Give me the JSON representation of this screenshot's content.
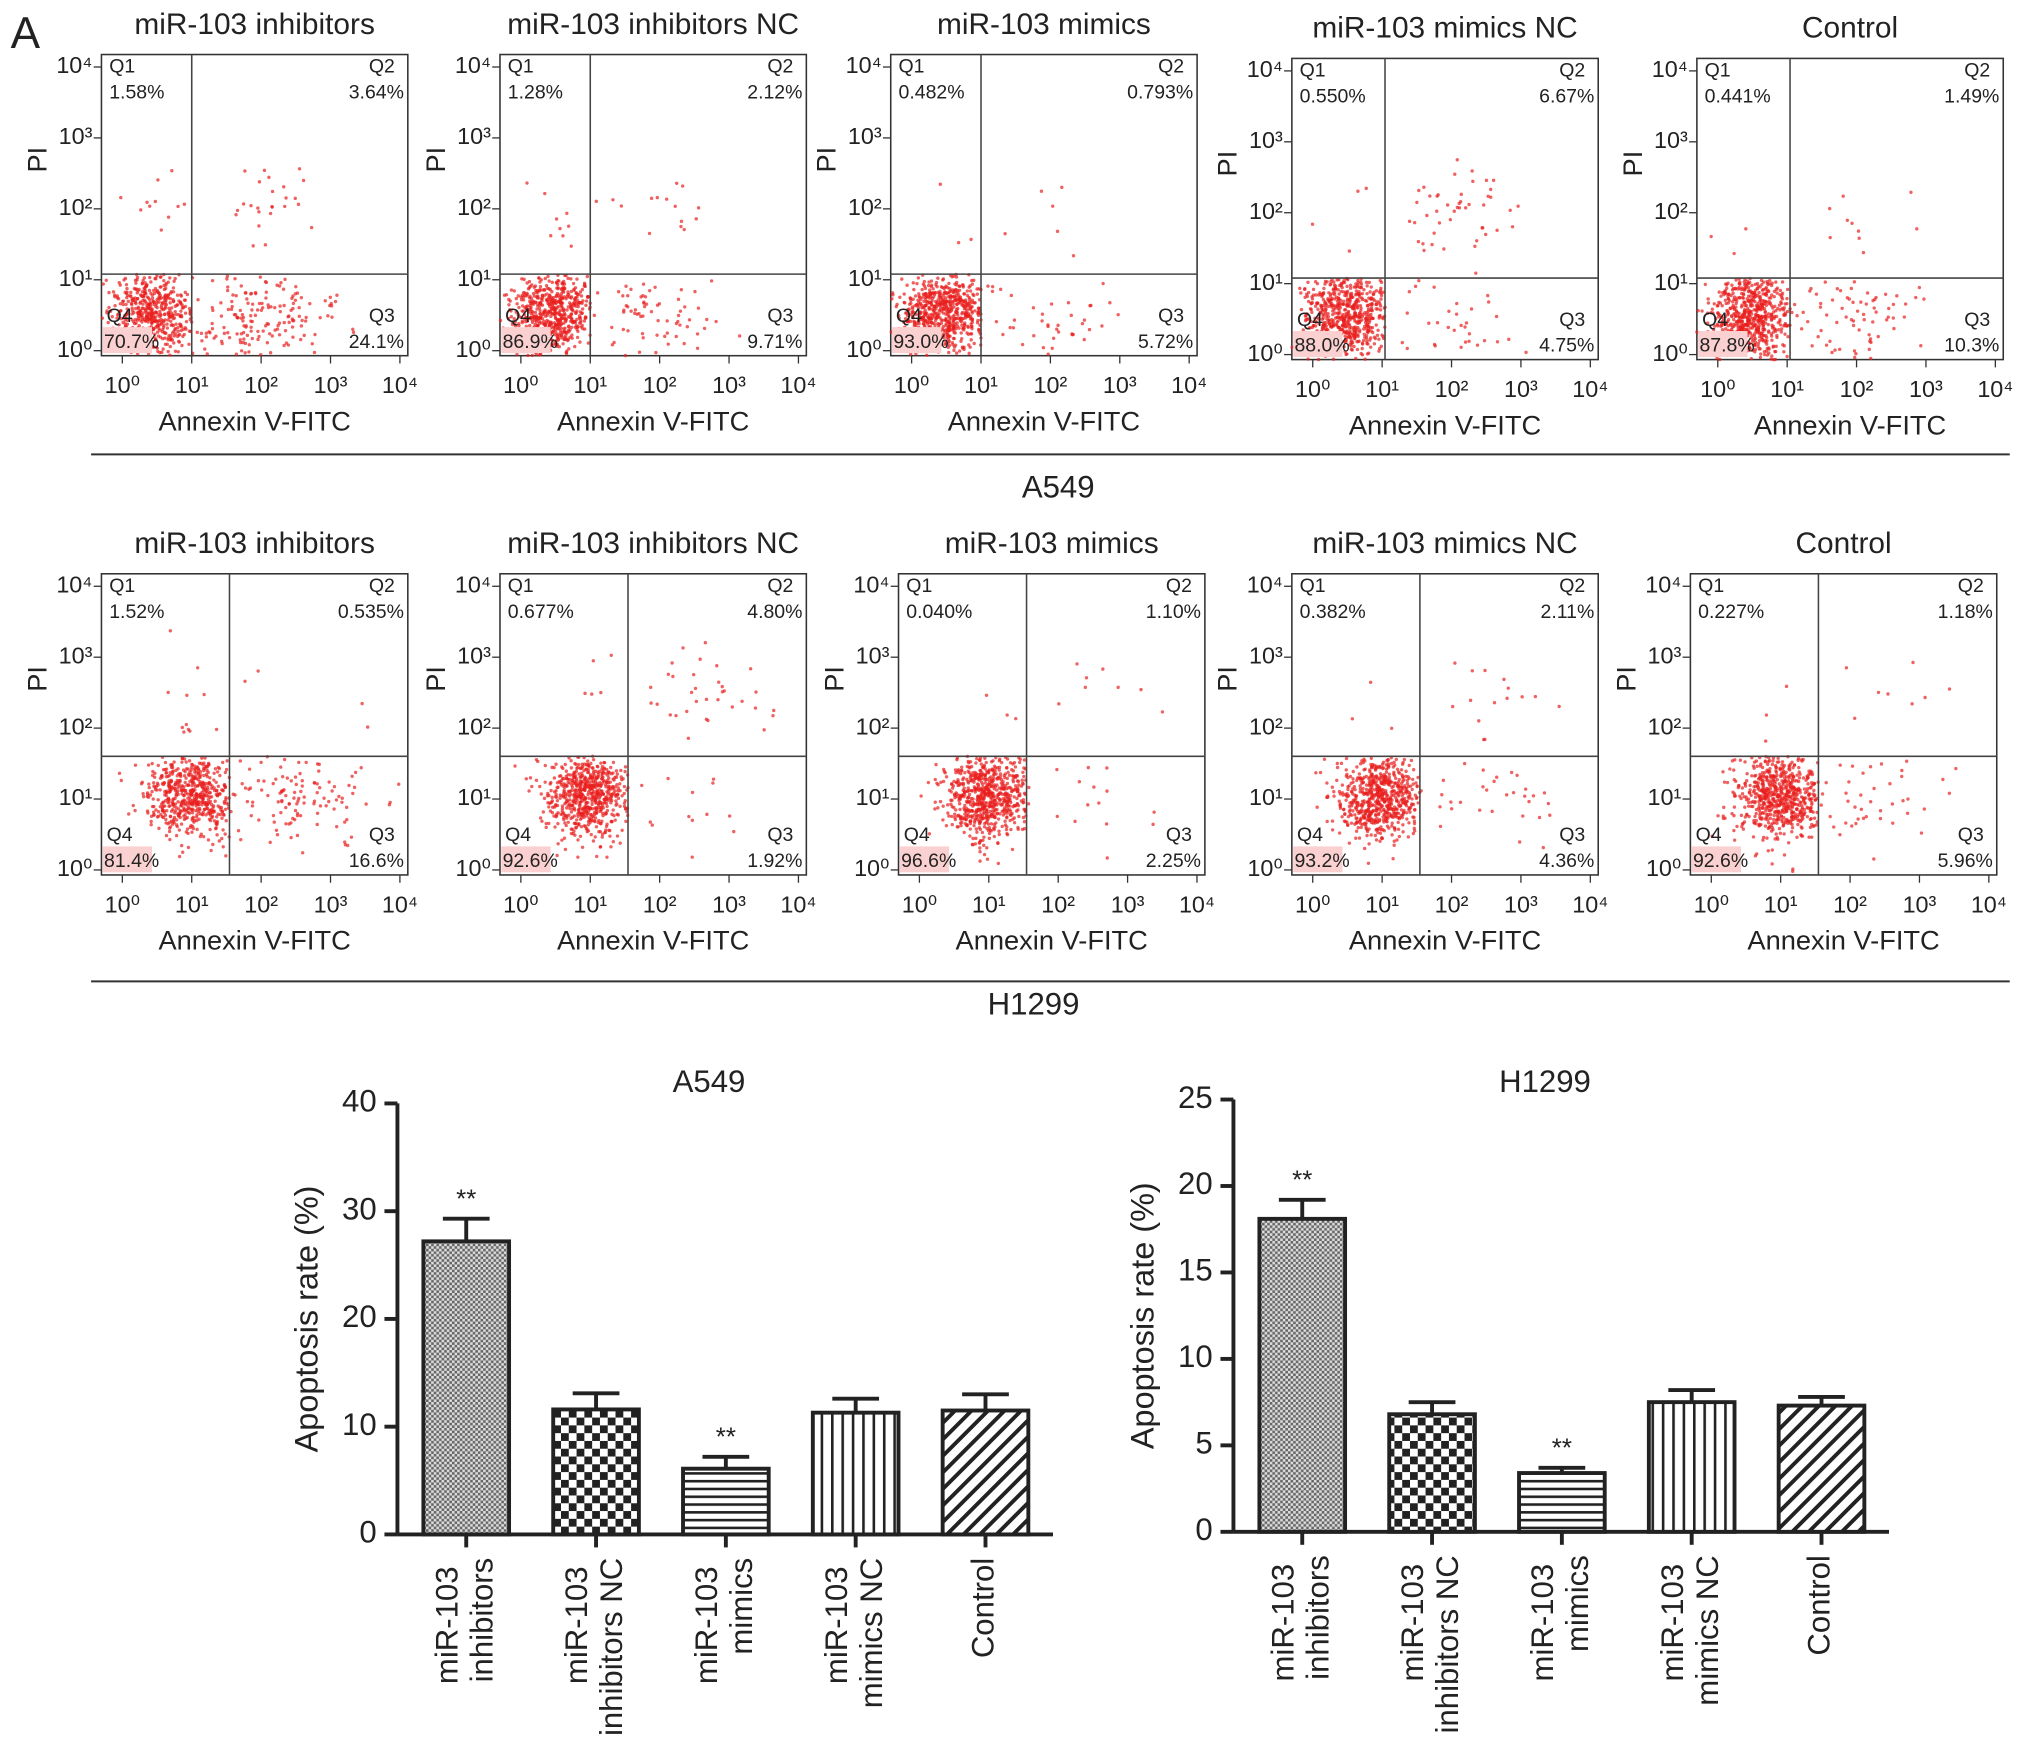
{
  "panel_label": "A",
  "sections": [
    "A549",
    "H1299"
  ],
  "chart_data": [
    {
      "type": "flow",
      "title": "miR-103 inhibitors",
      "xlabel": "Annexin V-FITC",
      "ylabel": "PI",
      "xscale": "log",
      "yscale": "log",
      "xlim": [
        0.5,
        13000
      ],
      "ylim": [
        0.85,
        15000
      ],
      "xticks": [
        {
          "value": 1,
          "label": "10⁰"
        },
        {
          "value": 10,
          "label": "10¹"
        },
        {
          "value": 100,
          "label": "10²"
        },
        {
          "value": 1000,
          "label": "10³"
        },
        {
          "value": 10000,
          "label": "10⁴"
        }
      ],
      "yticks": [
        {
          "value": 1,
          "label": "10⁰"
        },
        {
          "value": 10,
          "label": "10¹"
        },
        {
          "value": 100,
          "label": "10²"
        },
        {
          "value": 1000,
          "label": "10³"
        },
        {
          "value": 10000,
          "label": "10⁴"
        }
      ],
      "gate": {
        "x": 10,
        "y": 12
      },
      "color": "#e8201e",
      "quadrants": [
        "Q1",
        "Q2",
        "Q3",
        "Q4"
      ],
      "values": [
        1.58,
        3.64,
        24.1,
        70.7
      ],
      "value_labels": [
        "1.58%",
        "3.64%",
        "24.1%",
        "70.7%"
      ]
    },
    {
      "type": "flow",
      "title": "miR-103 inhibitors NC",
      "xlabel": "Annexin V-FITC",
      "ylabel": "PI",
      "xscale": "log",
      "yscale": "log",
      "xlim": [
        0.5,
        13000
      ],
      "ylim": [
        0.85,
        15000
      ],
      "xticks": [
        {
          "value": 1,
          "label": "10⁰"
        },
        {
          "value": 10,
          "label": "10¹"
        },
        {
          "value": 100,
          "label": "10²"
        },
        {
          "value": 1000,
          "label": "10³"
        },
        {
          "value": 10000,
          "label": "10⁴"
        }
      ],
      "yticks": [
        {
          "value": 1,
          "label": "10⁰"
        },
        {
          "value": 10,
          "label": "10¹"
        },
        {
          "value": 100,
          "label": "10²"
        },
        {
          "value": 1000,
          "label": "10³"
        },
        {
          "value": 10000,
          "label": "10⁴"
        }
      ],
      "gate": {
        "x": 10,
        "y": 12
      },
      "color": "#e8201e",
      "quadrants": [
        "Q1",
        "Q2",
        "Q3",
        "Q4"
      ],
      "values": [
        1.28,
        2.12,
        9.71,
        86.9
      ],
      "value_labels": [
        "1.28%",
        "2.12%",
        "9.71%",
        "86.9%"
      ]
    },
    {
      "type": "flow",
      "title": "miR-103 mimics",
      "xlabel": "Annexin V-FITC",
      "ylabel": "PI",
      "xscale": "log",
      "yscale": "log",
      "xlim": [
        0.5,
        13000
      ],
      "ylim": [
        0.85,
        15000
      ],
      "xticks": [
        {
          "value": 1,
          "label": "10⁰"
        },
        {
          "value": 10,
          "label": "10¹"
        },
        {
          "value": 100,
          "label": "10²"
        },
        {
          "value": 1000,
          "label": "10³"
        },
        {
          "value": 10000,
          "label": "10⁴"
        }
      ],
      "yticks": [
        {
          "value": 1,
          "label": "10⁰"
        },
        {
          "value": 10,
          "label": "10¹"
        },
        {
          "value": 100,
          "label": "10²"
        },
        {
          "value": 1000,
          "label": "10³"
        },
        {
          "value": 10000,
          "label": "10⁴"
        }
      ],
      "gate": {
        "x": 10,
        "y": 12
      },
      "color": "#e8201e",
      "quadrants": [
        "Q1",
        "Q2",
        "Q3",
        "Q4"
      ],
      "values": [
        0.482,
        0.793,
        5.72,
        93.0
      ],
      "value_labels": [
        "0.482%",
        "0.793%",
        "5.72%",
        "93.0%"
      ]
    },
    {
      "type": "flow",
      "title": "miR-103 mimics NC",
      "xlabel": "Annexin V-FITC",
      "ylabel": "PI",
      "xscale": "log",
      "yscale": "log",
      "xlim": [
        0.5,
        13000
      ],
      "ylim": [
        0.85,
        15000
      ],
      "xticks": [
        {
          "value": 1,
          "label": "10⁰"
        },
        {
          "value": 10,
          "label": "10¹"
        },
        {
          "value": 100,
          "label": "10²"
        },
        {
          "value": 1000,
          "label": "10³"
        },
        {
          "value": 10000,
          "label": "10⁴"
        }
      ],
      "yticks": [
        {
          "value": 1,
          "label": "10⁰"
        },
        {
          "value": 10,
          "label": "10¹"
        },
        {
          "value": 100,
          "label": "10²"
        },
        {
          "value": 1000,
          "label": "10³"
        },
        {
          "value": 10000,
          "label": "10⁴"
        }
      ],
      "gate": {
        "x": 11,
        "y": 12
      },
      "color": "#e8201e",
      "quadrants": [
        "Q1",
        "Q2",
        "Q3",
        "Q4"
      ],
      "values": [
        0.55,
        6.67,
        4.75,
        88.0
      ],
      "value_labels": [
        "0.550%",
        "6.67%",
        "4.75%",
        "88.0%"
      ]
    },
    {
      "type": "flow",
      "title": "Control",
      "xlabel": "Annexin V-FITC",
      "ylabel": "PI",
      "xscale": "log",
      "yscale": "log",
      "xlim": [
        0.5,
        13000
      ],
      "ylim": [
        0.85,
        15000
      ],
      "xticks": [
        {
          "value": 1,
          "label": "10⁰"
        },
        {
          "value": 10,
          "label": "10¹"
        },
        {
          "value": 100,
          "label": "10²"
        },
        {
          "value": 1000,
          "label": "10³"
        },
        {
          "value": 10000,
          "label": "10⁴"
        }
      ],
      "yticks": [
        {
          "value": 1,
          "label": "10⁰"
        },
        {
          "value": 10,
          "label": "10¹"
        },
        {
          "value": 100,
          "label": "10²"
        },
        {
          "value": 1000,
          "label": "10³"
        },
        {
          "value": 10000,
          "label": "10⁴"
        }
      ],
      "gate": {
        "x": 11,
        "y": 12
      },
      "color": "#e8201e",
      "quadrants": [
        "Q1",
        "Q2",
        "Q3",
        "Q4"
      ],
      "values": [
        0.441,
        1.49,
        10.3,
        87.8
      ],
      "value_labels": [
        "0.441%",
        "1.49%",
        "10.3%",
        "87.8%"
      ]
    },
    {
      "type": "flow",
      "title": "miR-103 inhibitors",
      "xlabel": "Annexin V-FITC",
      "ylabel": "PI",
      "xscale": "log",
      "yscale": "log",
      "xlim": [
        0.5,
        13000
      ],
      "ylim": [
        0.85,
        15000
      ],
      "xticks": [
        {
          "value": 1,
          "label": "10⁰"
        },
        {
          "value": 10,
          "label": "10¹"
        },
        {
          "value": 100,
          "label": "10²"
        },
        {
          "value": 1000,
          "label": "10³"
        },
        {
          "value": 10000,
          "label": "10⁴"
        }
      ],
      "yticks": [
        {
          "value": 1,
          "label": "10⁰"
        },
        {
          "value": 10,
          "label": "10¹"
        },
        {
          "value": 100,
          "label": "10²"
        },
        {
          "value": 1000,
          "label": "10³"
        },
        {
          "value": 10000,
          "label": "10⁴"
        }
      ],
      "gate": {
        "x": 35,
        "y": 40
      },
      "color": "#e8201e",
      "quadrants": [
        "Q1",
        "Q2",
        "Q3",
        "Q4"
      ],
      "values": [
        1.52,
        0.535,
        16.6,
        81.4
      ],
      "value_labels": [
        "1.52%",
        "0.535%",
        "16.6%",
        "81.4%"
      ]
    },
    {
      "type": "flow",
      "title": "miR-103 inhibitors NC",
      "xlabel": "Annexin V-FITC",
      "ylabel": "PI",
      "xscale": "log",
      "yscale": "log",
      "xlim": [
        0.5,
        13000
      ],
      "ylim": [
        0.85,
        15000
      ],
      "xticks": [
        {
          "value": 1,
          "label": "10⁰"
        },
        {
          "value": 10,
          "label": "10¹"
        },
        {
          "value": 100,
          "label": "10²"
        },
        {
          "value": 1000,
          "label": "10³"
        },
        {
          "value": 10000,
          "label": "10⁴"
        }
      ],
      "yticks": [
        {
          "value": 1,
          "label": "10⁰"
        },
        {
          "value": 10,
          "label": "10¹"
        },
        {
          "value": 100,
          "label": "10²"
        },
        {
          "value": 1000,
          "label": "10³"
        },
        {
          "value": 10000,
          "label": "10⁴"
        }
      ],
      "gate": {
        "x": 35,
        "y": 40
      },
      "color": "#e8201e",
      "quadrants": [
        "Q1",
        "Q2",
        "Q3",
        "Q4"
      ],
      "values": [
        0.677,
        4.8,
        1.92,
        92.6
      ],
      "value_labels": [
        "0.677%",
        "4.80%",
        "1.92%",
        "92.6%"
      ]
    },
    {
      "type": "flow",
      "title": "miR-103 mimics",
      "xlabel": "Annexin V-FITC",
      "ylabel": "PI",
      "xscale": "log",
      "yscale": "log",
      "xlim": [
        0.5,
        13000
      ],
      "ylim": [
        0.85,
        15000
      ],
      "xticks": [
        {
          "value": 1,
          "label": "10⁰"
        },
        {
          "value": 10,
          "label": "10¹"
        },
        {
          "value": 100,
          "label": "10²"
        },
        {
          "value": 1000,
          "label": "10³"
        },
        {
          "value": 10000,
          "label": "10⁴"
        }
      ],
      "yticks": [
        {
          "value": 1,
          "label": "10⁰"
        },
        {
          "value": 10,
          "label": "10¹"
        },
        {
          "value": 100,
          "label": "10²"
        },
        {
          "value": 1000,
          "label": "10³"
        },
        {
          "value": 10000,
          "label": "10⁴"
        }
      ],
      "gate": {
        "x": 35,
        "y": 40
      },
      "color": "#e8201e",
      "quadrants": [
        "Q1",
        "Q2",
        "Q3",
        "Q4"
      ],
      "values": [
        0.04,
        1.1,
        2.25,
        96.6
      ],
      "value_labels": [
        "0.040%",
        "1.10%",
        "2.25%",
        "96.6%"
      ]
    },
    {
      "type": "flow",
      "title": "miR-103 mimics NC",
      "xlabel": "Annexin V-FITC",
      "ylabel": "PI",
      "xscale": "log",
      "yscale": "log",
      "xlim": [
        0.5,
        13000
      ],
      "ylim": [
        0.85,
        15000
      ],
      "xticks": [
        {
          "value": 1,
          "label": "10⁰"
        },
        {
          "value": 10,
          "label": "10¹"
        },
        {
          "value": 100,
          "label": "10²"
        },
        {
          "value": 1000,
          "label": "10³"
        },
        {
          "value": 10000,
          "label": "10⁴"
        }
      ],
      "yticks": [
        {
          "value": 1,
          "label": "10⁰"
        },
        {
          "value": 10,
          "label": "10¹"
        },
        {
          "value": 100,
          "label": "10²"
        },
        {
          "value": 1000,
          "label": "10³"
        },
        {
          "value": 10000,
          "label": "10⁴"
        }
      ],
      "gate": {
        "x": 35,
        "y": 40
      },
      "color": "#e8201e",
      "quadrants": [
        "Q1",
        "Q2",
        "Q3",
        "Q4"
      ],
      "values": [
        0.382,
        2.11,
        4.36,
        93.2
      ],
      "value_labels": [
        "0.382%",
        "2.11%",
        "4.36%",
        "93.2%"
      ]
    },
    {
      "type": "flow",
      "title": "Control",
      "xlabel": "Annexin V-FITC",
      "ylabel": "PI",
      "xscale": "log",
      "yscale": "log",
      "xlim": [
        0.5,
        13000
      ],
      "ylim": [
        0.85,
        15000
      ],
      "xticks": [
        {
          "value": 1,
          "label": "10⁰"
        },
        {
          "value": 10,
          "label": "10¹"
        },
        {
          "value": 100,
          "label": "10²"
        },
        {
          "value": 1000,
          "label": "10³"
        },
        {
          "value": 10000,
          "label": "10⁴"
        }
      ],
      "yticks": [
        {
          "value": 1,
          "label": "10⁰"
        },
        {
          "value": 10,
          "label": "10¹"
        },
        {
          "value": 100,
          "label": "10²"
        },
        {
          "value": 1000,
          "label": "10³"
        },
        {
          "value": 10000,
          "label": "10⁴"
        }
      ],
      "gate": {
        "x": 35,
        "y": 40
      },
      "color": "#e8201e",
      "quadrants": [
        "Q1",
        "Q2",
        "Q3",
        "Q4"
      ],
      "values": [
        0.227,
        1.18,
        5.96,
        92.6
      ],
      "value_labels": [
        "0.227%",
        "1.18%",
        "5.96%",
        "92.6%"
      ]
    },
    {
      "type": "bar",
      "title": "A549",
      "ylabel": "Apoptosis rate (%)",
      "categories": [
        "miR-103 inhibitors",
        "miR-103 inhibitors NC",
        "miR-103 mimics",
        "miR-103 mimics NC",
        "Control"
      ],
      "values": [
        27.2,
        11.6,
        6.1,
        11.3,
        11.5
      ],
      "errors": [
        2.1,
        1.5,
        1.1,
        1.3,
        1.5
      ],
      "annotations": [
        {
          "index": 0,
          "text": "**"
        },
        {
          "index": 2,
          "text": "**"
        }
      ],
      "ylim": [
        0,
        40
      ],
      "yticks": [
        0,
        10,
        20,
        30,
        40
      ]
    },
    {
      "type": "bar",
      "title": "H1299",
      "ylabel": "Apoptosis rate (%)",
      "categories": [
        "miR-103 inhibitors",
        "miR-103 inhibitors NC",
        "miR-103 mimics",
        "miR-103 mimics NC",
        "Control"
      ],
      "values": [
        18.1,
        6.8,
        3.4,
        7.5,
        7.3
      ],
      "errors": [
        1.1,
        0.7,
        0.3,
        0.7,
        0.5
      ],
      "annotations": [
        {
          "index": 0,
          "text": "**"
        },
        {
          "index": 2,
          "text": "**"
        }
      ],
      "ylim": [
        0,
        25
      ],
      "yticks": [
        0,
        5,
        10,
        15,
        20,
        25
      ]
    }
  ]
}
